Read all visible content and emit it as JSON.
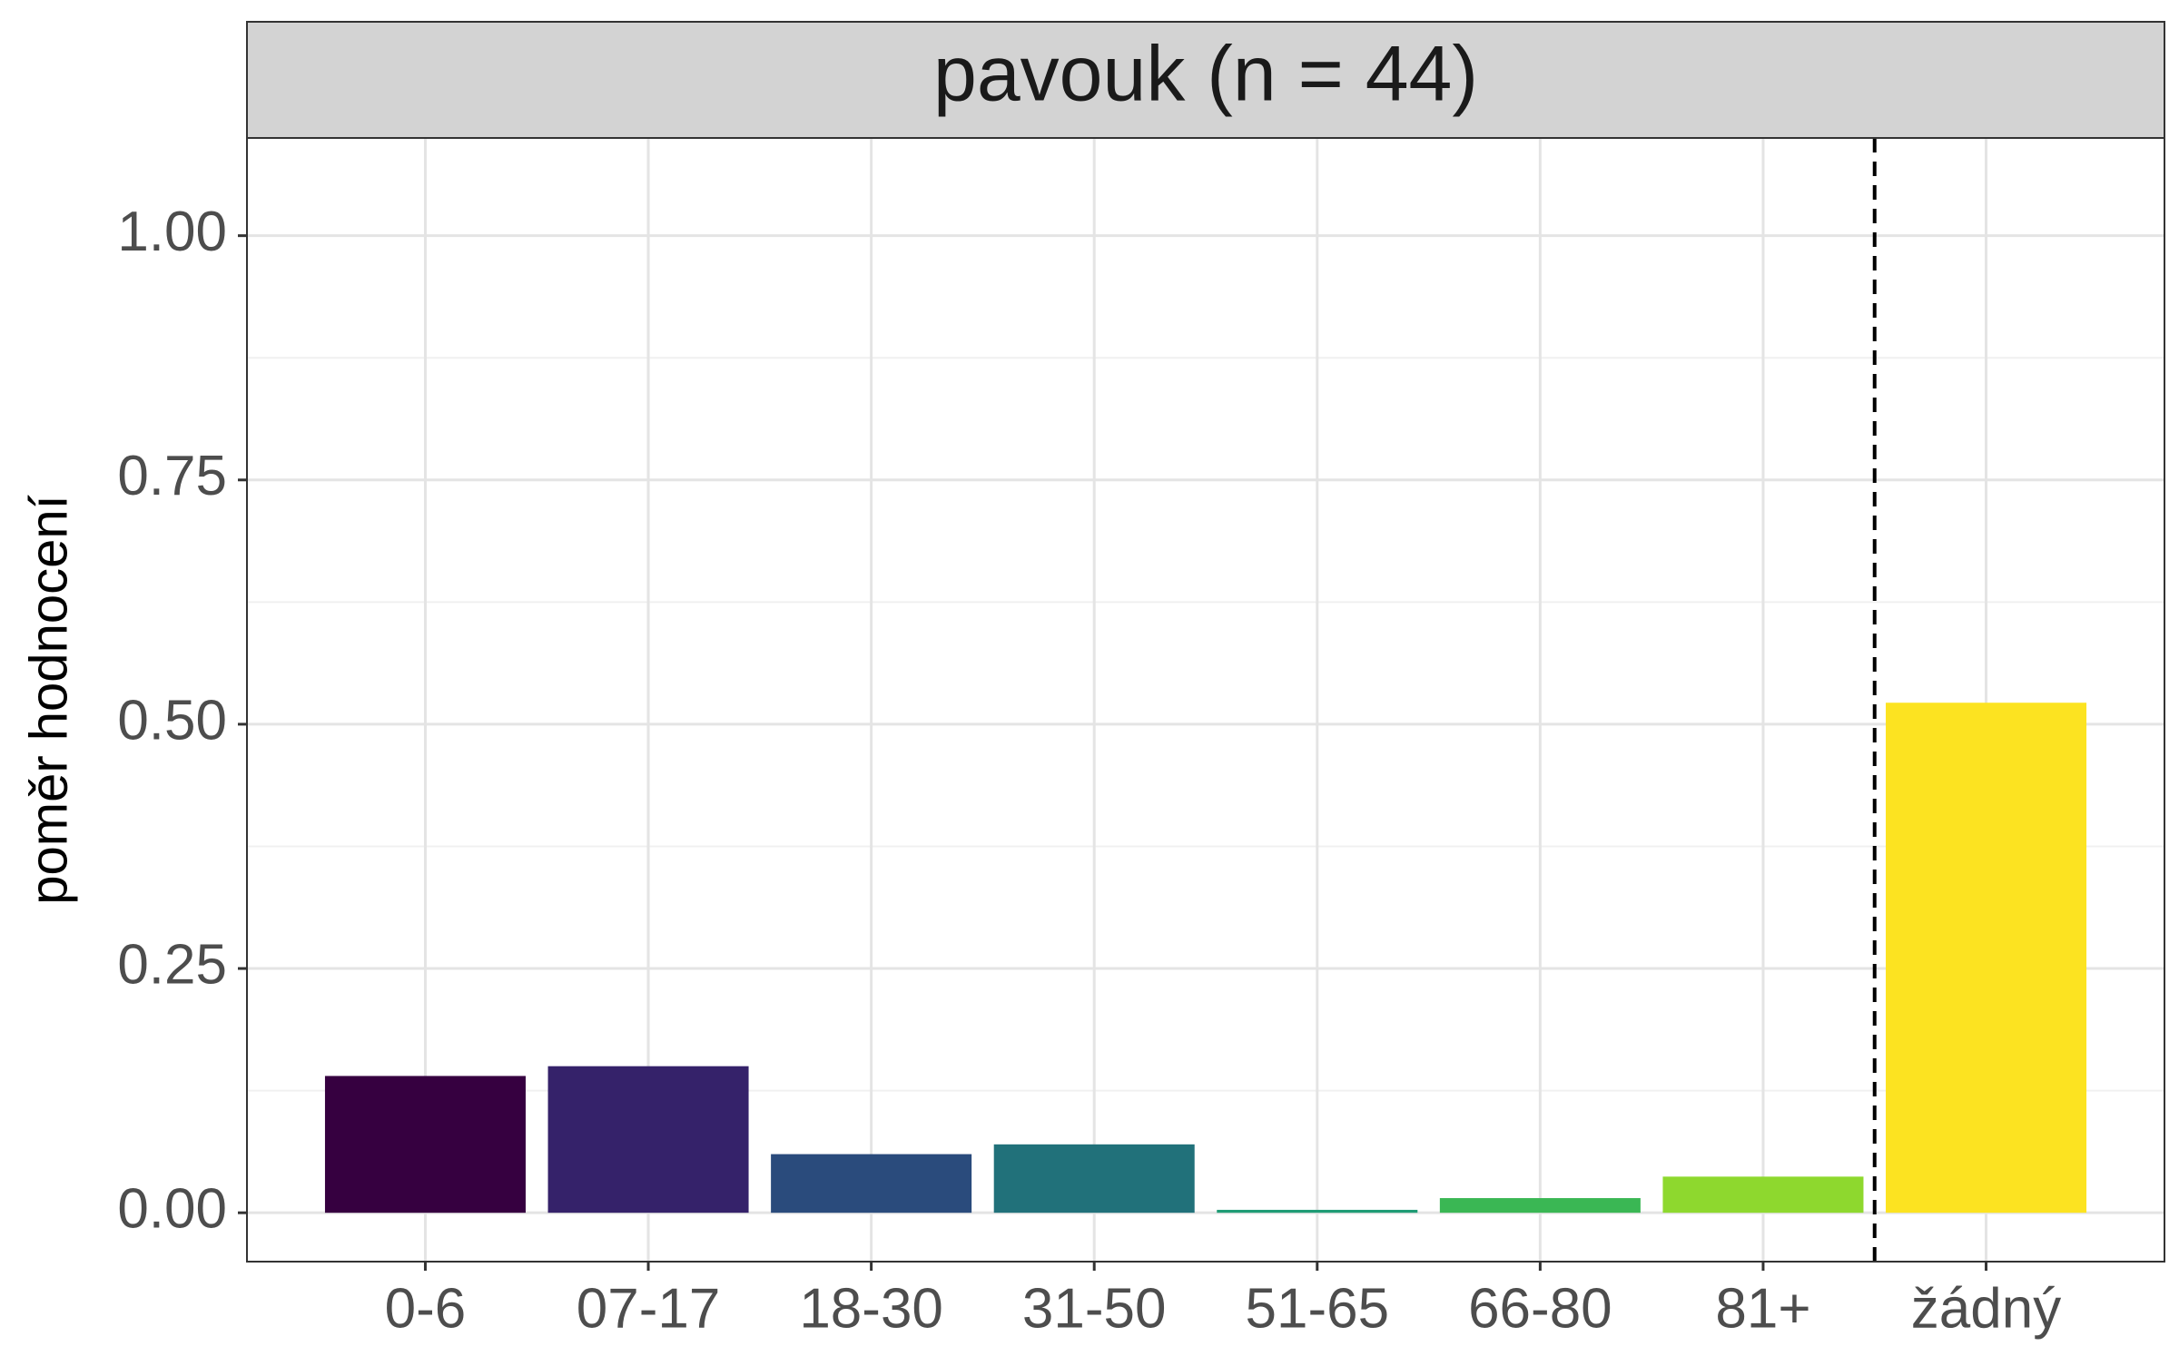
{
  "chart_data": {
    "type": "bar",
    "facet_title": "pavouk (n = 44)",
    "ylabel": "poměr hodnocení",
    "xlabel": "",
    "categories": [
      "0-6",
      "07-17",
      "18-30",
      "31-50",
      "51-65",
      "66-80",
      "81+",
      "žádný"
    ],
    "values": [
      0.14,
      0.15,
      0.06,
      0.07,
      0.003,
      0.015,
      0.037,
      0.522
    ],
    "colors": [
      "#360040",
      "#35226A",
      "#2A4B7C",
      "#21717A",
      "#1E9B74",
      "#3AB754",
      "#8ED82E",
      "#FCE321"
    ],
    "ylim": [
      -0.05,
      1.1
    ],
    "yticks": [
      0.0,
      0.25,
      0.5,
      0.75,
      1.0
    ],
    "ytick_labels": [
      "0.00",
      "0.25",
      "0.50",
      "0.75",
      "1.00"
    ],
    "reference_line": {
      "between": [
        "81+",
        "žádný"
      ],
      "style": "dashed"
    },
    "grid": true,
    "facet_strip_color": "#d3d3d3"
  }
}
